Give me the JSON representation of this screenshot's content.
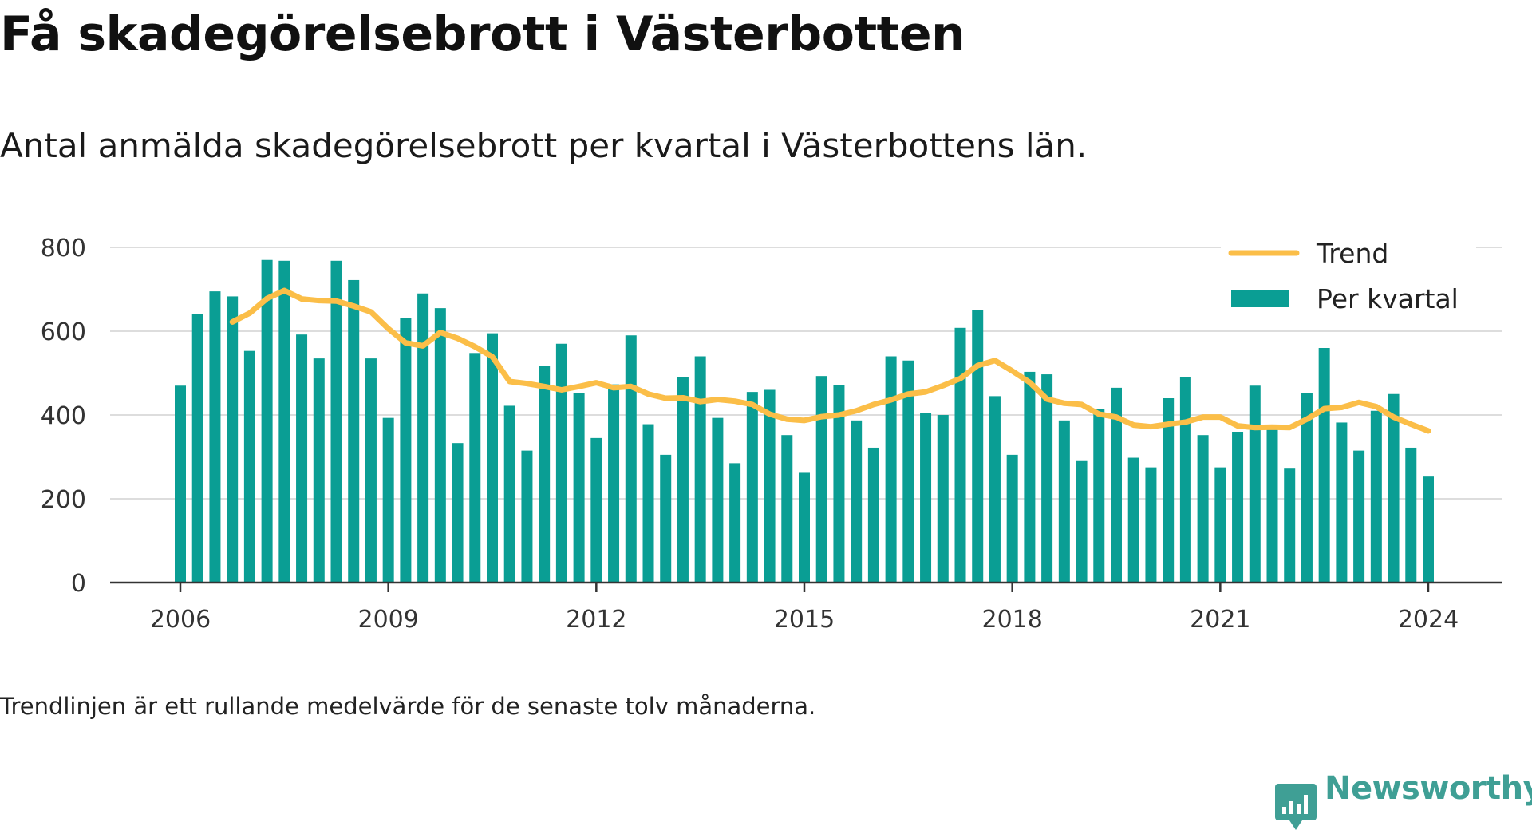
{
  "title": "Få skadegörelsebrott i Västerbotten",
  "subtitle": "Antal anmälda skadegörelsebrott per kvartal i Västerbottens län.",
  "footnote": "Trendlinjen är ett rullande medelvärde för de senaste tolv månaderna.",
  "brand": "Newsworthy",
  "colors": {
    "bar": "#0a9e94",
    "trend": "#fbbe48",
    "grid": "#dddddd",
    "axis": "#333333",
    "brand": "#3f9f95"
  },
  "chart_data": {
    "type": "bar",
    "x_start": 2006,
    "x_step": 0.25,
    "xlim": [
      2006,
      2024
    ],
    "ylim": [
      0,
      800
    ],
    "yticks": [
      0,
      200,
      400,
      600,
      800
    ],
    "xticks": [
      2006,
      2009,
      2012,
      2015,
      2018,
      2021,
      2024
    ],
    "grid": true,
    "legend_position": "top-right",
    "series": [
      {
        "name": "Per kvartal",
        "type": "bar",
        "values": [
          470,
          640,
          695,
          683,
          553,
          770,
          768,
          592,
          535,
          768,
          722,
          535,
          393,
          632,
          690,
          655,
          333,
          548,
          595,
          422,
          315,
          518,
          570,
          452,
          345,
          473,
          590,
          378,
          305,
          490,
          540,
          393,
          285,
          455,
          460,
          352,
          262,
          493,
          472,
          387,
          322,
          540,
          530,
          405,
          400,
          608,
          650,
          445,
          305,
          503,
          497,
          387,
          290,
          415,
          465,
          298,
          275,
          440,
          490,
          352,
          275,
          360,
          470,
          370,
          272,
          452,
          560,
          382,
          315,
          410,
          450,
          322,
          253
        ]
      },
      {
        "name": "Trend",
        "type": "line",
        "x_start": 2006.75,
        "values": [
          622,
          643,
          678,
          697,
          677,
          673,
          672,
          660,
          646,
          606,
          572,
          565,
          597,
          583,
          563,
          539,
          480,
          475,
          468,
          460,
          468,
          477,
          465,
          468,
          450,
          440,
          441,
          432,
          437,
          433,
          425,
          402,
          390,
          387,
          396,
          400,
          410,
          425,
          436,
          450,
          455,
          470,
          487,
          518,
          530,
          505,
          478,
          438,
          428,
          425,
          402,
          395,
          376,
          372,
          378,
          383,
          395,
          395,
          374,
          370,
          371,
          370,
          390,
          415,
          418,
          430,
          420,
          395,
          378,
          362
        ]
      }
    ]
  }
}
